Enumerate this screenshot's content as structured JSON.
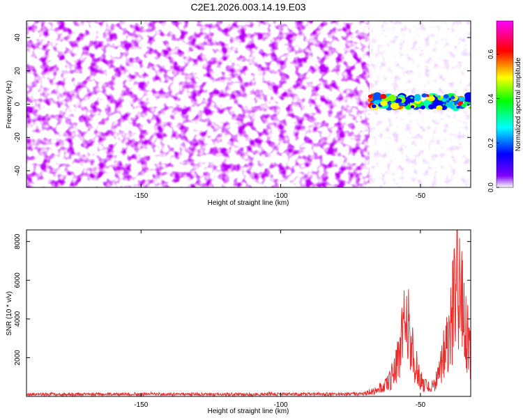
{
  "title": "C2E1.2026.003.14.19.E03",
  "chart_data": [
    {
      "type": "heatmap",
      "xlabel": "Height of straight line (km)",
      "ylabel": "Frequency (Hz)",
      "xlim": [
        -191,
        -32
      ],
      "ylim": [
        -50,
        50
      ],
      "xticks": [
        -150,
        -100,
        -50
      ],
      "yticks": [
        -40,
        -20,
        0,
        20,
        40
      ],
      "colorbar": {
        "label": "Normalized spectral amplitude",
        "range": [
          0.0,
          0.75
        ],
        "ticks": [
          0.0,
          0.2,
          0.4,
          0.6
        ],
        "colormap": [
          "#ffffff",
          "#7f00ff",
          "#0000ff",
          "#00ffff",
          "#00ff00",
          "#ffff00",
          "#ff0000",
          "#ff00ff"
        ]
      },
      "regions": [
        {
          "x_range": [
            -191,
            -68
          ],
          "y_range": [
            -50,
            50
          ],
          "amplitude_level": 0.05,
          "description_color": "#7f00ff"
        },
        {
          "x_range": [
            -68,
            -32
          ],
          "y_range": [
            -5,
            8
          ],
          "amplitude_level": 0.55
        }
      ],
      "grid": false
    },
    {
      "type": "line",
      "xlabel": "Height of straight line (km)",
      "ylabel": "SNR (10 * v/v)",
      "xlim": [
        -191,
        -32
      ],
      "ylim": [
        0,
        8600
      ],
      "xticks": [
        -150,
        -100,
        -50
      ],
      "yticks": [
        2000,
        4000,
        6000,
        8000
      ],
      "color": "#ee2b2b",
      "series": [
        {
          "x": [
            -191,
            -170,
            -150,
            -130,
            -110,
            -90,
            -75,
            -70,
            -66,
            -62,
            -59,
            -57,
            -55,
            -54,
            -53,
            -51,
            -49,
            -47,
            -45,
            -43,
            -41,
            -39,
            -38,
            -37,
            -36,
            -35,
            -34,
            -33,
            -32
          ],
          "values": [
            150,
            160,
            170,
            160,
            150,
            170,
            160,
            200,
            450,
            900,
            2100,
            3800,
            5900,
            4900,
            3600,
            1800,
            900,
            650,
            800,
            1800,
            3900,
            6100,
            6900,
            8600,
            7800,
            6300,
            5000,
            4200,
            3000
          ]
        }
      ],
      "grid": false
    }
  ]
}
